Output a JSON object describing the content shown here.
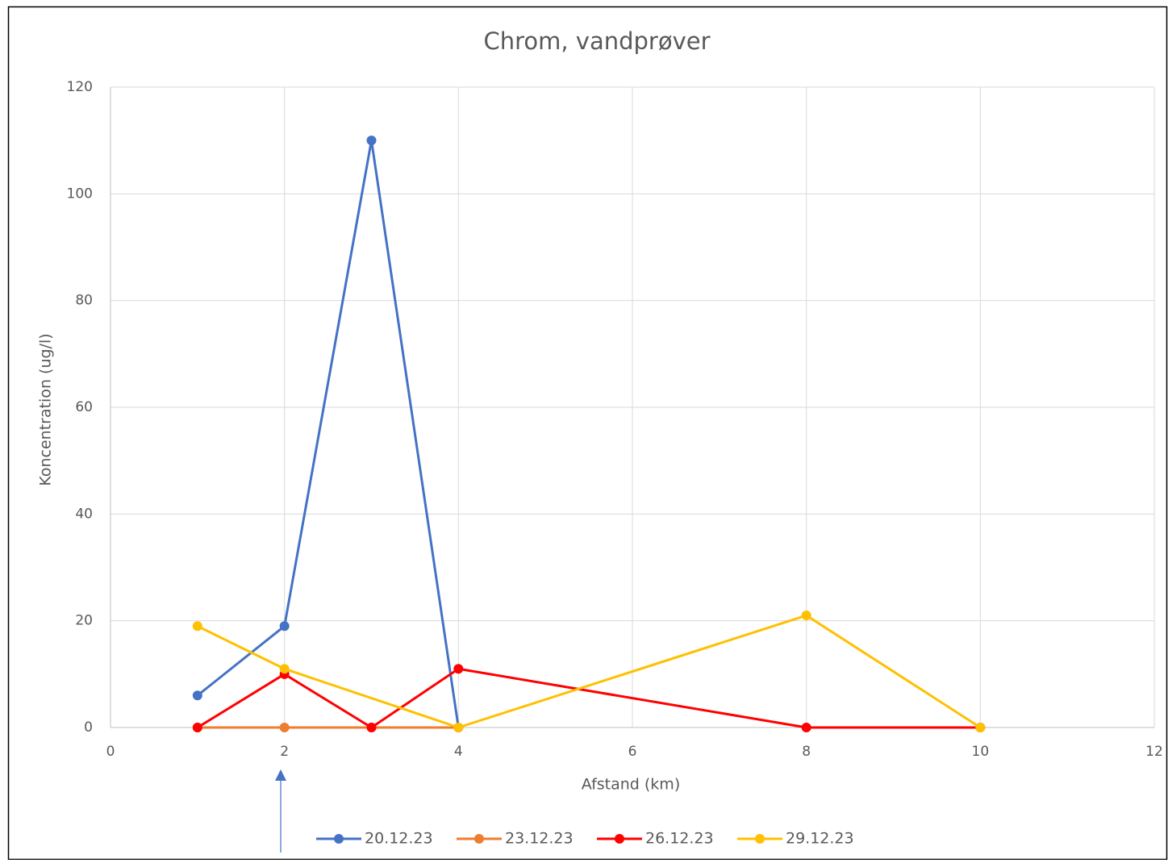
{
  "chart_data": {
    "type": "line",
    "title": "Chrom, vandprøver",
    "x_label": "Afstand (km)",
    "y_label": "Koncentration (ug/l)",
    "xlim": [
      0,
      12
    ],
    "xticks": [
      0,
      2,
      4,
      6,
      8,
      10,
      12
    ],
    "ylim": [
      0,
      120
    ],
    "yticks": [
      0,
      20,
      40,
      60,
      80,
      100,
      120
    ],
    "grid": true,
    "legend": "bottom",
    "series": [
      {
        "name": "20.12.23",
        "color": "#4472c4",
        "x": [
          1,
          2,
          3,
          4
        ],
        "values": [
          6,
          19,
          110,
          0
        ]
      },
      {
        "name": "23.12.23",
        "color": "#ed7d31",
        "x": [
          1,
          2,
          3,
          4
        ],
        "values": [
          0,
          0,
          0,
          0
        ]
      },
      {
        "name": "26.12.23",
        "color": "#ff0000",
        "x": [
          1,
          2,
          3,
          4,
          8,
          10
        ],
        "values": [
          0,
          10,
          0,
          11,
          0,
          0
        ]
      },
      {
        "name": "29.12.23",
        "color": "#ffc000",
        "x": [
          1,
          2,
          4,
          8,
          10
        ],
        "values": [
          19,
          11,
          0,
          21,
          0
        ]
      }
    ]
  }
}
